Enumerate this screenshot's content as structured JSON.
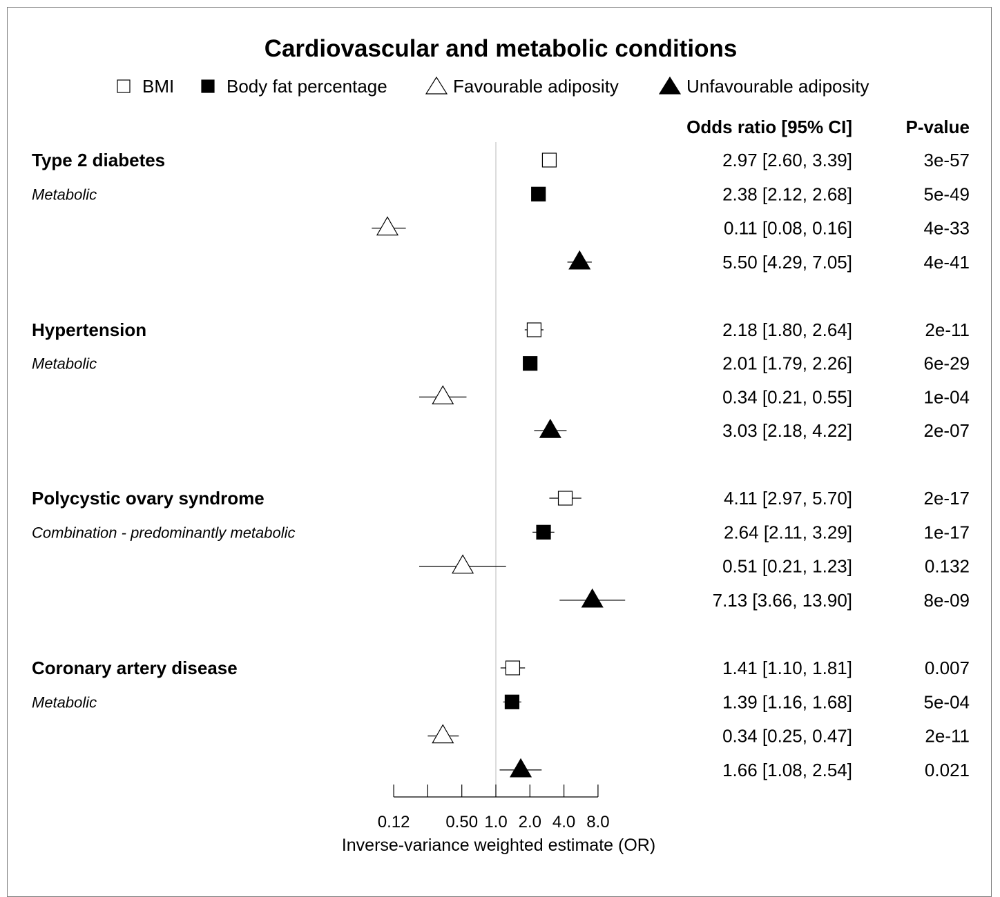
{
  "chart_data": {
    "type": "forest",
    "title": "Cardiovascular and metabolic conditions",
    "xlabel": "Inverse-variance weighted estimate (OR)",
    "x_scale": "log2",
    "xlim": [
      0.125,
      8.0
    ],
    "xticks": [
      0.125,
      0.25,
      0.5,
      1.0,
      2.0,
      4.0,
      8.0
    ],
    "xtick_labels": [
      "0.12",
      "",
      "0.50",
      "1.0",
      "2.0",
      "4.0",
      "8.0"
    ],
    "reference_line": 1.0,
    "column_headers": {
      "or": "Odds ratio [95% CI]",
      "p": "P-value"
    },
    "legend": [
      {
        "name": "BMI",
        "marker": "square-open"
      },
      {
        "name": "Body fat percentage",
        "marker": "square-filled"
      },
      {
        "name": "Favourable adiposity",
        "marker": "triangle-open"
      },
      {
        "name": "Unfavourable adiposity",
        "marker": "triangle-filled"
      }
    ],
    "groups": [
      {
        "condition": "Type 2 diabetes",
        "category": "Metabolic",
        "rows": [
          {
            "series": "BMI",
            "or": 2.97,
            "lo": 2.6,
            "hi": 3.39,
            "or_text": "2.97 [2.60, 3.39]",
            "p": "3e-57"
          },
          {
            "series": "Body fat percentage",
            "or": 2.38,
            "lo": 2.12,
            "hi": 2.68,
            "or_text": "2.38 [2.12, 2.68]",
            "p": "5e-49"
          },
          {
            "series": "Favourable adiposity",
            "or": 0.11,
            "lo": 0.08,
            "hi": 0.16,
            "or_text": "0.11 [0.08, 0.16]",
            "p": "4e-33"
          },
          {
            "series": "Unfavourable adiposity",
            "or": 5.5,
            "lo": 4.29,
            "hi": 7.05,
            "or_text": "5.50 [4.29, 7.05]",
            "p": "4e-41"
          }
        ]
      },
      {
        "condition": "Hypertension",
        "category": "Metabolic",
        "rows": [
          {
            "series": "BMI",
            "or": 2.18,
            "lo": 1.8,
            "hi": 2.64,
            "or_text": "2.18 [1.80, 2.64]",
            "p": "2e-11"
          },
          {
            "series": "Body fat percentage",
            "or": 2.01,
            "lo": 1.79,
            "hi": 2.26,
            "or_text": "2.01 [1.79, 2.26]",
            "p": "6e-29"
          },
          {
            "series": "Favourable adiposity",
            "or": 0.34,
            "lo": 0.21,
            "hi": 0.55,
            "or_text": "0.34 [0.21, 0.55]",
            "p": "1e-04"
          },
          {
            "series": "Unfavourable adiposity",
            "or": 3.03,
            "lo": 2.18,
            "hi": 4.22,
            "or_text": "3.03 [2.18, 4.22]",
            "p": "2e-07"
          }
        ]
      },
      {
        "condition": "Polycystic ovary syndrome",
        "category": "Combination - predominantly metabolic",
        "rows": [
          {
            "series": "BMI",
            "or": 4.11,
            "lo": 2.97,
            "hi": 5.7,
            "or_text": "4.11 [2.97, 5.70]",
            "p": "2e-17"
          },
          {
            "series": "Body fat percentage",
            "or": 2.64,
            "lo": 2.11,
            "hi": 3.29,
            "or_text": "2.64 [2.11, 3.29]",
            "p": "1e-17"
          },
          {
            "series": "Favourable adiposity",
            "or": 0.51,
            "lo": 0.21,
            "hi": 1.23,
            "or_text": "0.51 [0.21, 1.23]",
            "p": "0.132"
          },
          {
            "series": "Unfavourable adiposity",
            "or": 7.13,
            "lo": 3.66,
            "hi": 13.9,
            "or_text": "7.13 [3.66, 13.90]",
            "p": "8e-09"
          }
        ]
      },
      {
        "condition": "Coronary artery disease",
        "category": "Metabolic",
        "rows": [
          {
            "series": "BMI",
            "or": 1.41,
            "lo": 1.1,
            "hi": 1.81,
            "or_text": "1.41 [1.10, 1.81]",
            "p": "0.007"
          },
          {
            "series": "Body fat percentage",
            "or": 1.39,
            "lo": 1.16,
            "hi": 1.68,
            "or_text": "1.39 [1.16, 1.68]",
            "p": "5e-04"
          },
          {
            "series": "Favourable adiposity",
            "or": 0.34,
            "lo": 0.25,
            "hi": 0.47,
            "or_text": "0.34 [0.25, 0.47]",
            "p": "2e-11"
          },
          {
            "series": "Unfavourable adiposity",
            "or": 1.66,
            "lo": 1.08,
            "hi": 2.54,
            "or_text": "1.66 [1.08, 2.54]",
            "p": "0.021"
          }
        ]
      }
    ]
  }
}
